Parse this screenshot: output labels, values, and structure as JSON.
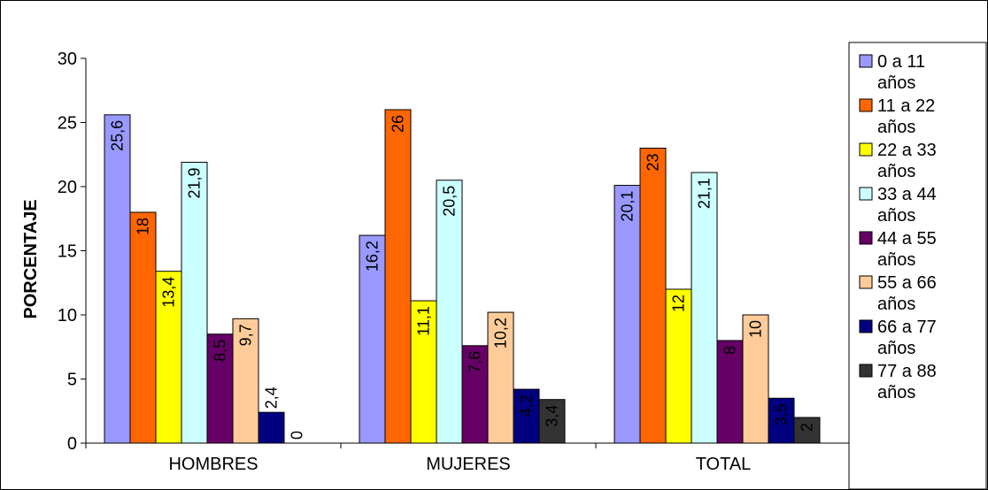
{
  "chart_data": {
    "type": "bar",
    "title": "",
    "xlabel": "",
    "ylabel": "PORCENTAJE",
    "ylim": [
      0,
      30
    ],
    "yticks": [
      0,
      5,
      10,
      15,
      20,
      25,
      30
    ],
    "grid": false,
    "legend_position": "right",
    "categories": [
      "HOMBRES",
      "MUJERES",
      "TOTAL"
    ],
    "series": [
      {
        "name": "0 a 11 años",
        "color": "#9999FF",
        "values": [
          25.6,
          16.2,
          20.1
        ],
        "labels": [
          "25,6",
          "16,2",
          "20,1"
        ]
      },
      {
        "name": "11 a 22 años",
        "color": "#FF6600",
        "values": [
          18,
          26,
          23
        ],
        "labels": [
          "18",
          "26",
          "23"
        ]
      },
      {
        "name": "22 a 33 años",
        "color": "#FFFF00",
        "values": [
          13.4,
          11.1,
          12
        ],
        "labels": [
          "13,4",
          "11,1",
          "12"
        ]
      },
      {
        "name": "33 a 44 años",
        "color": "#CCFFFF",
        "values": [
          21.9,
          20.5,
          21.1
        ],
        "labels": [
          "21,9",
          "20,5",
          "21,1"
        ]
      },
      {
        "name": "44 a 55 años",
        "color": "#660066",
        "values": [
          8.5,
          7.6,
          8
        ],
        "labels": [
          "8,5",
          "7,6",
          "8"
        ]
      },
      {
        "name": "55 a 66 años",
        "color": "#FFCC99",
        "values": [
          9.7,
          10.2,
          10
        ],
        "labels": [
          "9,7",
          "10,2",
          "10"
        ]
      },
      {
        "name": "66 a 77 años",
        "color": "#000080",
        "values": [
          2.4,
          4.2,
          3.5
        ],
        "labels": [
          "2,4",
          "4,2",
          "3,5"
        ]
      },
      {
        "name": "77 a 88 años",
        "color": "#333333",
        "values": [
          0,
          3.4,
          2
        ],
        "labels": [
          "0",
          "3,4",
          "2"
        ]
      }
    ]
  }
}
